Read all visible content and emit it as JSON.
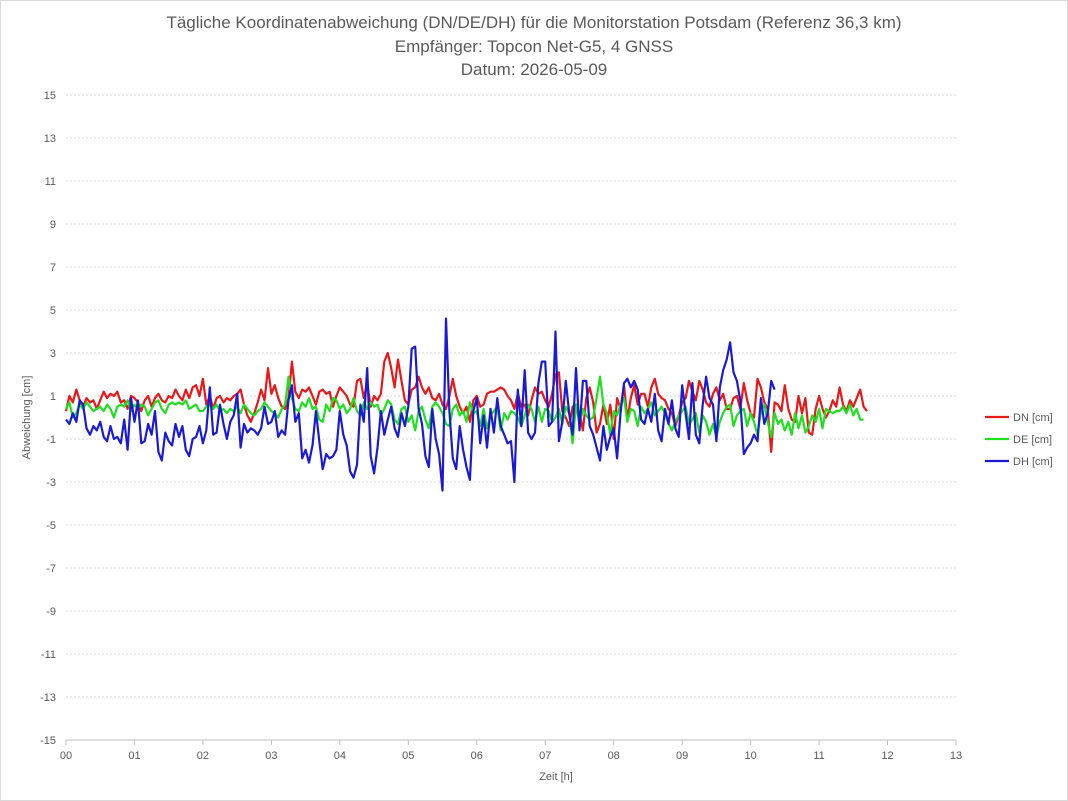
{
  "chart_data": {
    "type": "line",
    "title": "Tägliche Koordinatenabweichung (DN/DE/DH) für die Monitorstation Potsdam (Referenz 36,3 km)",
    "subtitle": "Empfänger: Topcon Net-G5, 4 GNSS",
    "subtitle2": "Datum: 2026-05-09",
    "xlabel": "Zeit [h]",
    "ylabel": "Abweichung [cm]",
    "xlim": [
      0,
      13
    ],
    "ylim": [
      -15,
      15
    ],
    "x_ticks": [
      "00",
      "01",
      "02",
      "03",
      "04",
      "05",
      "06",
      "07",
      "08",
      "09",
      "10",
      "11",
      "12",
      "13"
    ],
    "y_ticks": [
      15,
      13,
      11,
      9,
      7,
      5,
      3,
      1,
      -1,
      -3,
      -5,
      -7,
      -9,
      -11,
      -13,
      -15
    ],
    "grid": true,
    "legend": "right",
    "sample_interval_h": 0.05,
    "series": [
      {
        "name": "DN [cm]",
        "color": "#e81818",
        "values": [
          0.3,
          1.0,
          0.7,
          1.3,
          0.8,
          0.5,
          0.9,
          0.7,
          0.8,
          0.4,
          0.8,
          1.2,
          0.9,
          1.1,
          1.0,
          1.2,
          0.7,
          0.8,
          0.4,
          1.0,
          0.9,
          0.7,
          0.3,
          0.8,
          1.0,
          0.5,
          0.9,
          1.1,
          0.8,
          0.7,
          1.0,
          0.9,
          1.3,
          1.0,
          0.8,
          1.3,
          0.9,
          1.4,
          1.5,
          1.0,
          1.8,
          0.6,
          1.0,
          0.4,
          0.9,
          1.0,
          0.7,
          0.9,
          0.8,
          1.0,
          1.1,
          1.3,
          0.6,
          0.1,
          -0.2,
          0.2,
          0.7,
          1.3,
          0.8,
          2.3,
          1.1,
          1.5,
          0.9,
          0.5,
          0.4,
          0.9,
          2.6,
          1.2,
          0.9,
          1.3,
          1.2,
          1.4,
          1.0,
          0.6,
          1.2,
          1.3,
          1.1,
          1.2,
          0.5,
          1.0,
          1.4,
          1.2,
          1.0,
          0.6,
          0.5,
          1.7,
          1.8,
          0.9,
          1.6,
          0.5,
          1.0,
          0.8,
          1.1,
          2.6,
          3.0,
          2.3,
          1.4,
          2.7,
          1.7,
          0.8,
          0.6,
          1.3,
          1.4,
          1.9,
          1.4,
          1.1,
          1.4,
          0.9,
          0.8,
          1.1,
          0.6,
          0.4,
          1.0,
          1.8,
          1.0,
          0.5,
          0.2,
          0.5,
          -0.2,
          0.8,
          1.0,
          0.5,
          0.6,
          1.1,
          1.2,
          1.2,
          1.3,
          1.4,
          1.3,
          1.0,
          0.8,
          0.4,
          1.1,
          0.5,
          0.6,
          0.1,
          0.8,
          1.4,
          1.1,
          1.2,
          0.8,
          0.5,
          1.1,
          2.0,
          2.1,
          0.3,
          0.0,
          -0.4,
          0.5,
          0.6,
          0.2,
          -0.6,
          0.9,
          1.4,
          0.7,
          -0.7,
          -0.3,
          0.6,
          -0.3,
          0.6,
          -1.0,
          0.9,
          0.4,
          1.5,
          -0.1,
          0.9,
          1.5,
          0.6,
          1.1,
          1.1,
          0.5,
          1.4,
          1.8,
          1.1,
          0.9,
          0.8,
          0.4,
          0.2,
          -0.4,
          0.1,
          0.7,
          0.9,
          1.7,
          1.2,
          0.8,
          1.7,
          1.3,
          0.7,
          0.5,
          1.1,
          1.4,
          0.8,
          1.1,
          0.4,
          0.4,
          0.9,
          1.0,
          0.4,
          1.6,
          0.8,
          0.2,
          0.0,
          1.8,
          1.4,
          0.7,
          0.4,
          -1.6,
          0.7,
          0.6,
          0.3,
          1.5,
          0.4,
          -0.1,
          -0.2,
          1.0,
          0.2,
          0.9,
          -0.7,
          -0.8,
          0.4,
          1.0,
          0.4,
          0.0,
          0.3,
          0.8,
          0.5,
          1.4,
          0.6,
          0.3,
          0.8,
          0.5,
          0.9,
          1.3,
          0.5,
          0.3
        ]
      },
      {
        "name": "DE [cm]",
        "color": "#1fe01f",
        "values": [
          0.4,
          0.7,
          0.0,
          0.2,
          0.6,
          0.4,
          0.7,
          0.5,
          0.3,
          0.4,
          0.5,
          0.3,
          0.6,
          0.4,
          0.0,
          0.5,
          0.6,
          0.5,
          0.8,
          0.3,
          0.6,
          0.4,
          0.6,
          0.5,
          0.1,
          0.4,
          0.7,
          0.8,
          0.4,
          0.2,
          0.6,
          0.7,
          0.6,
          0.7,
          0.6,
          0.8,
          0.4,
          0.5,
          0.6,
          0.3,
          0.3,
          0.5,
          0.6,
          0.4,
          0.6,
          0.3,
          0.4,
          0.2,
          0.4,
          0.3,
          0.5,
          0.2,
          0.6,
          0.4,
          0.2,
          0.1,
          0.3,
          0.4,
          0.7,
          0.5,
          0.3,
          0.2,
          0.0,
          0.4,
          0.6,
          1.9,
          0.9,
          0.4,
          0.3,
          0.7,
          0.5,
          0.9,
          0.4,
          0.5,
          -0.1,
          -0.2,
          0.6,
          0.3,
          0.9,
          0.8,
          0.4,
          0.6,
          0.2,
          0.4,
          0.9,
          0.3,
          0.1,
          0.7,
          0.4,
          0.7,
          0.5,
          0.6,
          0.1,
          0.4,
          0.8,
          0.6,
          -0.1,
          -0.3,
          0.4,
          0.5,
          -0.2,
          0.1,
          -0.6,
          0.3,
          0.5,
          -0.1,
          -0.5,
          0.5,
          0.7,
          0.5,
          0.2,
          -0.3,
          -0.4,
          0.4,
          0.6,
          0.1,
          0.3,
          -0.2,
          0.7,
          0.2,
          0.3,
          -0.4,
          0.4,
          -0.5,
          0.1,
          0.3,
          0.5,
          -0.6,
          0.2,
          -0.1,
          0.3,
          0.2,
          0.0,
          -0.4,
          0.1,
          0.6,
          0.4,
          -0.2,
          0.5,
          -0.2,
          0.4,
          0.3,
          -0.2,
          0.0,
          0.4,
          -0.3,
          0.5,
          0.2,
          -1.2,
          0.6,
          -0.3,
          0.4,
          0.1,
          -0.1,
          0.0,
          0.9,
          1.9,
          0.6,
          0.2,
          -0.8,
          0.3,
          0.1,
          0.6,
          0.9,
          -0.2,
          0.4,
          0.3,
          -0.4,
          0.5,
          0.2,
          0.4,
          0.7,
          0.1,
          0.3,
          0.5,
          0.2,
          -0.3,
          -0.6,
          -0.2,
          0.1,
          0.3,
          0.5,
          -0.3,
          -0.1,
          0.2,
          -0.7,
          0.1,
          -0.2,
          -0.8,
          -0.3,
          -0.9,
          -0.2,
          0.2,
          0.5,
          0.6,
          -0.4,
          0.1,
          0.3,
          0.4,
          -0.4,
          0.2,
          -0.2,
          -0.8,
          0.3,
          0.6,
          -0.2,
          -0.9,
          0.2,
          -0.3,
          -0.1,
          -0.6,
          -0.2,
          -0.8,
          0.2,
          -0.5,
          0.1,
          -0.7,
          -0.4,
          0.1,
          -0.2,
          0.4,
          -0.5,
          0.4,
          0.3,
          0.2,
          0.3,
          0.3,
          0.5,
          0.2,
          0.6,
          0.1,
          0.4,
          -0.1,
          -0.1
        ]
      },
      {
        "name": "DH [cm]",
        "color": "#1a1ad6",
        "values": [
          -0.1,
          -0.3,
          0.2,
          -0.2,
          0.8,
          0.6,
          -0.5,
          -0.8,
          -0.4,
          -0.6,
          -0.2,
          -0.9,
          -1.1,
          -0.4,
          -1.0,
          -0.9,
          -1.2,
          -0.1,
          -1.5,
          0.9,
          -0.2,
          0.8,
          -1.2,
          -1.1,
          -0.3,
          -0.8,
          0.3,
          -1.6,
          -2.0,
          -0.7,
          -1.1,
          -1.3,
          -0.3,
          -0.9,
          -0.4,
          -1.5,
          -1.8,
          -1.0,
          -0.9,
          -0.4,
          -1.2,
          -0.6,
          1.4,
          -0.8,
          -0.7,
          0.6,
          -0.3,
          -1.0,
          -0.2,
          0.1,
          1.1,
          -1.4,
          -0.3,
          -0.7,
          -0.5,
          -0.6,
          -0.8,
          -0.5,
          0.5,
          -0.3,
          -0.2,
          0.3,
          -0.9,
          -0.6,
          -0.8,
          0.8,
          1.5,
          -0.2,
          0.2,
          -1.9,
          -1.5,
          -2.1,
          -1.3,
          0.3,
          -1.1,
          -2.4,
          -1.7,
          -1.9,
          -1.8,
          -1.5,
          0.3,
          -0.8,
          -1.3,
          -2.5,
          -2.8,
          -2.2,
          0.6,
          -0.2,
          2.3,
          -1.8,
          -2.6,
          -1.4,
          0.3,
          -0.8,
          -0.1,
          0.5,
          -0.5,
          -0.9,
          0.2,
          -0.4,
          0.5,
          3.2,
          3.3,
          0.4,
          -0.3,
          -1.8,
          -2.3,
          0.4,
          -1.0,
          -1.7,
          -3.4,
          4.6,
          0.3,
          -1.9,
          -2.4,
          -0.4,
          -1.5,
          -2.3,
          -2.9,
          0.3,
          0.9,
          -1.2,
          0.1,
          -1.4,
          0.4,
          -0.7,
          0.9,
          -0.4,
          -0.8,
          -1.2,
          -1.1,
          -3.0,
          1.3,
          -0.4,
          2.2,
          -0.7,
          -1.0,
          -0.7,
          1.6,
          2.6,
          2.6,
          -0.4,
          -0.2,
          4.0,
          -1.1,
          -0.2,
          1.7,
          0.2,
          -0.8,
          2.3,
          -0.6,
          1.7,
          1.7,
          -0.4,
          -0.8,
          -1.4,
          -2.0,
          -0.4,
          -1.5,
          -0.9,
          -0.5,
          -1.9,
          0.2,
          1.6,
          1.8,
          1.4,
          1.7,
          1.3,
          -0.1,
          -0.3,
          0.4,
          -0.2,
          1.1,
          -0.6,
          -1.1,
          0.4,
          -0.3,
          0.8,
          -0.5,
          -0.9,
          1.5,
          0.2,
          -1.0,
          1.6,
          -0.8,
          -1.2,
          0.6,
          1.9,
          0.9,
          0.6,
          -1.1,
          1.4,
          2.2,
          2.7,
          3.5,
          2.1,
          1.7,
          0.8,
          -1.7,
          -1.4,
          -1.2,
          -0.8,
          -1.1,
          0.9,
          -0.3,
          0.2,
          1.7,
          1.3
        ]
      }
    ]
  }
}
